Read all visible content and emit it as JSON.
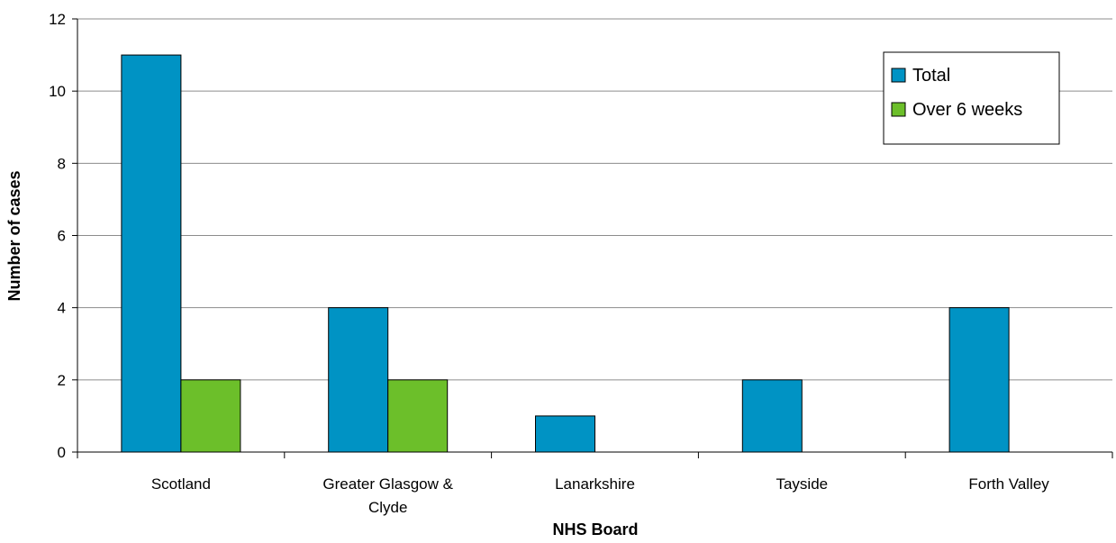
{
  "chart_data": {
    "type": "bar",
    "title": "",
    "xlabel": "NHS Board",
    "ylabel": "Number of cases",
    "categories": [
      [
        "Scotland"
      ],
      [
        "Greater Glasgow &",
        "Clyde"
      ],
      [
        "Lanarkshire"
      ],
      [
        "Tayside"
      ],
      [
        "Forth Valley"
      ]
    ],
    "series": [
      {
        "name": "Total",
        "values": [
          11,
          4,
          1,
          2,
          4
        ],
        "color": "#0093C4"
      },
      {
        "name": "Over 6 weeks",
        "values": [
          2,
          2,
          0,
          0,
          0
        ],
        "color": "#6CBF2A"
      }
    ],
    "ylim": [
      0,
      12
    ],
    "yticks": [
      0,
      2,
      4,
      6,
      8,
      10,
      12
    ],
    "grid": true,
    "legend": "top-right"
  }
}
